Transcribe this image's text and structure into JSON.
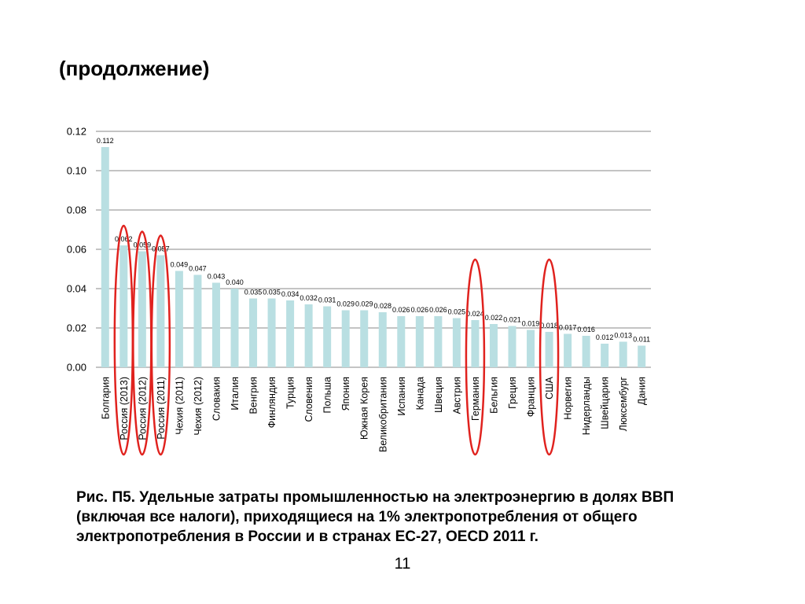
{
  "slide": {
    "title": "(продолжение)",
    "caption": "Рис. П5. Удельные затраты промышленностью на электроэнергию в долях ВВП (включая все налоги), приходящиеся на 1% электропотребления от общего электропотребления в России и в странах ЕС-27, OECD 2011 г.",
    "page_number": "11"
  },
  "chart_data": {
    "type": "bar",
    "title": "",
    "xlabel": "",
    "ylabel": "",
    "ylim": [
      0,
      0.12
    ],
    "yticks": [
      "0.00",
      "0.02",
      "0.04",
      "0.06",
      "0.08",
      "0.10",
      "0.12"
    ],
    "grid": true,
    "bar_color": "#b9dfe2",
    "highlight_color": "#e0221e",
    "categories": [
      "Болгария",
      "Россия (2013)",
      "Россия (2012)",
      "Россия (2011)",
      "Чехия (2011)",
      "Чехия (2012)",
      "Словакия",
      "Италия",
      "Венгрия",
      "Финляндия",
      "Турция",
      "Словения",
      "Польша",
      "Япония",
      "Южная Корея",
      "Великобритания",
      "Испания",
      "Канада",
      "Швеция",
      "Австрия",
      "Германия",
      "Бельгия",
      "Греция",
      "Франция",
      "США",
      "Норвегия",
      "Нидерланды",
      "Швейцария",
      "Люксембург",
      "Дания"
    ],
    "values": [
      0.112,
      0.062,
      0.059,
      0.057,
      0.049,
      0.047,
      0.043,
      0.04,
      0.035,
      0.035,
      0.034,
      0.032,
      0.031,
      0.029,
      0.029,
      0.028,
      0.026,
      0.026,
      0.026,
      0.025,
      0.024,
      0.022,
      0.021,
      0.019,
      0.018,
      0.017,
      0.016,
      0.012,
      0.013,
      0.011
    ],
    "value_labels": [
      "0.112",
      "0.062",
      "0.059",
      "0.057",
      "0.049",
      "0.047",
      "0.043",
      "0.040",
      "0.035",
      "0.035",
      "0.034",
      "0.032",
      "0.031",
      "0.029",
      "0.029",
      "0.028",
      "0.026",
      "0.026",
      "0.026",
      "0.025",
      "0.024",
      "0.022",
      "0.021",
      "0.019",
      "0.018",
      "0.017",
      "0.016",
      "0.012",
      "0.013",
      "0.011"
    ],
    "highlighted": [
      "Россия (2013)",
      "Россия (2012)",
      "Россия (2011)",
      "Германия",
      "США"
    ]
  }
}
